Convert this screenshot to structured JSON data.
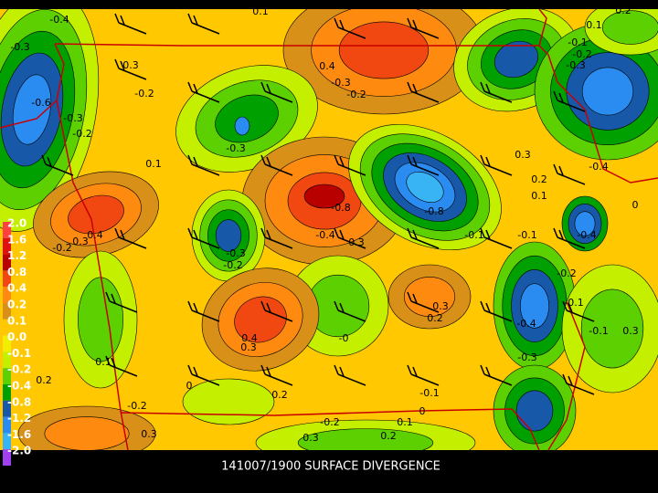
{
  "title": "141007/1900 SURFACE DIVERGENCE",
  "colorbar": {
    "labels": [
      "2.0",
      "1.6",
      "1.2",
      "0.8",
      "0.4",
      "0.2",
      "0.1",
      "0.0",
      "-0.1",
      "-0.2",
      "-0.4",
      "-0.8",
      "-1.2",
      "-1.6",
      "-2.0"
    ],
    "colors": [
      "#ff4040",
      "#e01010",
      "#b80000",
      "#f04810",
      "#ff8a10",
      "#d89018",
      "#ffc800",
      "#f2ee00",
      "#c4f000",
      "#5cd000",
      "#00a000",
      "#1858a8",
      "#2a8cf0",
      "#38b4f4",
      "#a040f0"
    ]
  },
  "contour_labels": [
    "-0.4",
    "0.1",
    "-0.3",
    "0.3",
    "-0.2",
    "-0.6",
    "-0.3",
    "-0.2",
    "0.1",
    "0.4",
    "-0.3",
    "-0.2",
    "0.2",
    "0.1",
    "-0.1",
    "-0.2",
    "-0.3",
    "-0.3",
    "0.3",
    "0.2",
    "0.1",
    "-0.4",
    "0",
    "-0.8",
    "-0.8",
    "-0.4",
    "0.3",
    "0.4",
    "0.3",
    "-0.2",
    "-0.3",
    "-0.2",
    "-0.1",
    "-0.1",
    "-0.4",
    "-0.2",
    "0.3",
    "0.2",
    "-0.1",
    "-0.4",
    "-0.1",
    "0.3",
    "0.4",
    "0.3",
    "-0",
    "-0.3",
    "0.1",
    "0.2",
    "0",
    "0.2",
    "-0.1",
    "-0.2",
    "0",
    "-0.2",
    "0.1",
    "0.3",
    "0.2",
    "0.3"
  ]
}
